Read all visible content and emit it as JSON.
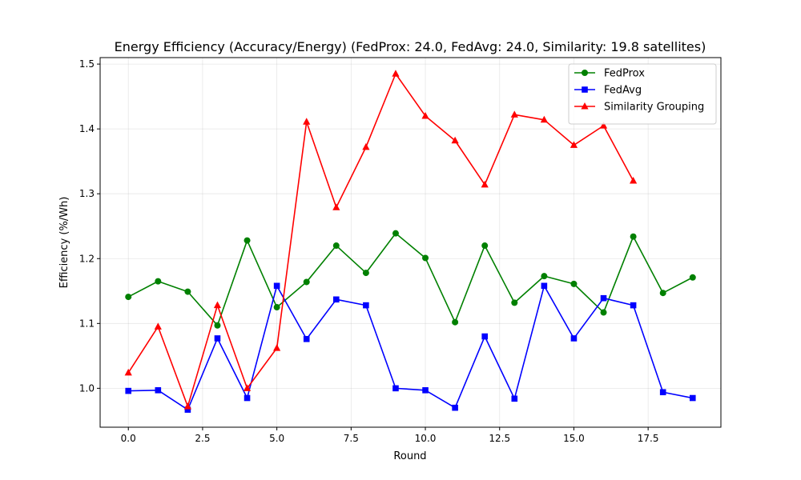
{
  "chart_data": {
    "type": "line",
    "title": "Energy Efficiency (Accuracy/Energy) (FedProx: 24.0, FedAvg: 24.0, Similarity: 19.8 satellites)",
    "xlabel": "Round",
    "ylabel": "Efficiency (%/Wh)",
    "xlim": [
      -0.95,
      19.95
    ],
    "ylim": [
      0.94,
      1.51
    ],
    "xticks": [
      0.0,
      2.5,
      5.0,
      7.5,
      10.0,
      12.5,
      15.0,
      17.5
    ],
    "xtick_labels": [
      "0.0",
      "2.5",
      "5.0",
      "7.5",
      "10.0",
      "12.5",
      "15.0",
      "17.5"
    ],
    "yticks": [
      1.0,
      1.1,
      1.2,
      1.3,
      1.4,
      1.5
    ],
    "ytick_labels": [
      "1.0",
      "1.1",
      "1.2",
      "1.3",
      "1.4",
      "1.5"
    ],
    "grid": true,
    "legend_position": "top-right",
    "series": [
      {
        "name": "FedProx",
        "color": "#008000",
        "marker": "circle",
        "x": [
          0,
          1,
          2,
          3,
          4,
          5,
          6,
          7,
          8,
          9,
          10,
          11,
          12,
          13,
          14,
          15,
          16,
          17,
          18,
          19
        ],
        "values": [
          1.141,
          1.165,
          1.149,
          1.097,
          1.228,
          1.125,
          1.164,
          1.22,
          1.178,
          1.239,
          1.201,
          1.102,
          1.22,
          1.132,
          1.173,
          1.161,
          1.117,
          1.234,
          1.147,
          1.171
        ]
      },
      {
        "name": "FedAvg",
        "color": "#0000ff",
        "marker": "square",
        "x": [
          0,
          1,
          2,
          3,
          4,
          5,
          6,
          7,
          8,
          9,
          10,
          11,
          12,
          13,
          14,
          15,
          16,
          17,
          18,
          19
        ],
        "values": [
          0.996,
          0.997,
          0.967,
          1.077,
          0.985,
          1.158,
          1.076,
          1.137,
          1.128,
          1.0,
          0.997,
          0.97,
          1.08,
          0.984,
          1.158,
          1.077,
          1.139,
          1.128,
          0.994,
          0.985
        ]
      },
      {
        "name": "Similarity Grouping",
        "color": "#ff0000",
        "marker": "triangle",
        "x": [
          0,
          1,
          2,
          3,
          4,
          5,
          6,
          7,
          8,
          9,
          10,
          11,
          12,
          13,
          14,
          15,
          16,
          17
        ],
        "values": [
          1.024,
          1.095,
          0.972,
          1.128,
          1.0,
          1.062,
          1.411,
          1.279,
          1.372,
          1.485,
          1.42,
          1.382,
          1.314,
          1.422,
          1.414,
          1.375,
          1.405,
          1.32
        ]
      }
    ]
  }
}
